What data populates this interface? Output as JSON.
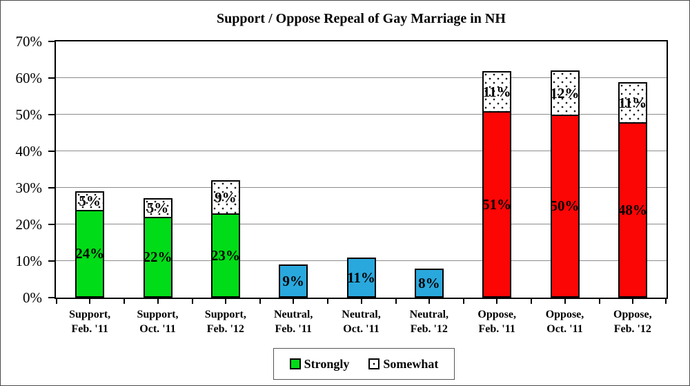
{
  "chart_data": {
    "type": "bar",
    "stacked": true,
    "title": "Support / Oppose Repeal of Gay Marriage in NH",
    "categories": [
      "Support, Feb. '11",
      "Support, Oct. '11",
      "Support, Feb. '12",
      "Neutral, Feb. '11",
      "Neutral, Oct. '11",
      "Neutral, Feb. '12",
      "Oppose, Feb. '11",
      "Oppose, Oct. '11",
      "Oppose, Feb. '12"
    ],
    "series": [
      {
        "name": "Strongly",
        "fill": "solid",
        "values": [
          24,
          22,
          23,
          9,
          11,
          8,
          51,
          50,
          48
        ]
      },
      {
        "name": "Somewhat",
        "fill": "dotted",
        "values": [
          5,
          5,
          9,
          0,
          0,
          0,
          11,
          12,
          11
        ]
      }
    ],
    "bar_colors": [
      "#00dc17",
      "#00dc17",
      "#00dc17",
      "#29a8dd",
      "#29a8dd",
      "#29a8dd",
      "#fb0505",
      "#fb0505",
      "#fb0505"
    ],
    "somewhat_fill_color": "#ffffff",
    "data_label_suffix": "%",
    "ylim": [
      0,
      70
    ],
    "ytick_step": 10,
    "ytick_labels": [
      "0%",
      "10%",
      "20%",
      "30%",
      "40%",
      "50%",
      "60%",
      "70%"
    ],
    "grid": true,
    "gridline_color": "#8c8c8c",
    "legend_position": "bottom-center"
  }
}
